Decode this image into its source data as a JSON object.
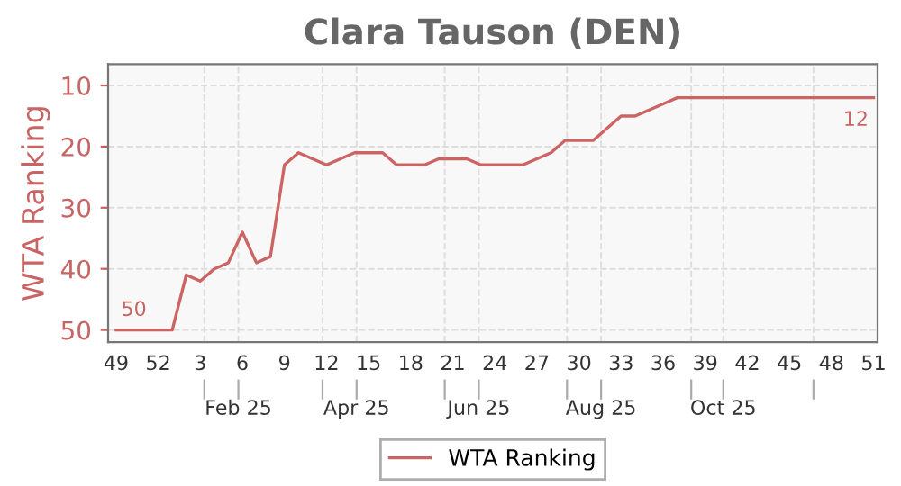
{
  "chart_data": {
    "type": "line",
    "title": "Clara Tauson (DEN)",
    "ylabel": "WTA Ranking",
    "x": [
      "2024-12-02",
      "2024-12-09",
      "2024-12-16",
      "2024-12-23",
      "2024-12-30",
      "2025-01-06",
      "2025-01-13",
      "2025-01-20",
      "2025-01-27",
      "2025-02-03",
      "2025-02-10",
      "2025-02-17",
      "2025-02-24",
      "2025-03-03",
      "2025-03-10",
      "2025-03-17",
      "2025-03-24",
      "2025-03-31",
      "2025-04-07",
      "2025-04-14",
      "2025-04-21",
      "2025-04-28",
      "2025-05-05",
      "2025-05-12",
      "2025-05-19",
      "2025-05-26",
      "2025-06-02",
      "2025-06-09",
      "2025-06-16",
      "2025-06-23",
      "2025-06-30",
      "2025-07-07",
      "2025-07-14",
      "2025-07-21",
      "2025-07-28",
      "2025-08-04",
      "2025-08-11",
      "2025-08-18",
      "2025-08-25",
      "2025-09-01",
      "2025-09-08",
      "2025-09-15",
      "2025-09-22",
      "2025-09-29",
      "2025-10-06",
      "2025-10-13",
      "2025-10-20",
      "2025-10-27",
      "2025-11-03",
      "2025-11-10",
      "2025-11-17",
      "2025-11-24",
      "2025-12-01",
      "2025-12-08",
      "2025-12-15"
    ],
    "series": [
      {
        "name": "WTA Ranking",
        "color": "#cd6464",
        "values": [
          50,
          50,
          50,
          50,
          50,
          41,
          42,
          40,
          39,
          34,
          39,
          38,
          23,
          21,
          22,
          23,
          22,
          21,
          21,
          21,
          23,
          23,
          23,
          22,
          22,
          22,
          23,
          23,
          23,
          23,
          22,
          21,
          19,
          19,
          19,
          17,
          15,
          15,
          14,
          13,
          12,
          12,
          12,
          12,
          12,
          12,
          12,
          12,
          12,
          12,
          12,
          12,
          12,
          12,
          12
        ]
      }
    ],
    "annotations": [
      {
        "text": "50",
        "x": "2024-12-02",
        "y": 50
      },
      {
        "text": "12",
        "x": "2025-12-15",
        "y": 12
      }
    ],
    "xlim": [
      "2024-11-28",
      "2025-12-17"
    ],
    "xticks": [
      {
        "value": "2024-12-02",
        "label": "49"
      },
      {
        "value": "2024-12-23",
        "label": "52"
      },
      {
        "value": "2025-01-13",
        "label": "3"
      },
      {
        "value": "2025-02-03",
        "label": "6"
      },
      {
        "value": "2025-02-24",
        "label": "9"
      },
      {
        "value": "2025-03-17",
        "label": "12"
      },
      {
        "value": "2025-04-07",
        "label": "15"
      },
      {
        "value": "2025-04-28",
        "label": "18"
      },
      {
        "value": "2025-05-19",
        "label": "21"
      },
      {
        "value": "2025-06-09",
        "label": "24"
      },
      {
        "value": "2025-06-30",
        "label": "27"
      },
      {
        "value": "2025-07-21",
        "label": "30"
      },
      {
        "value": "2025-08-11",
        "label": "33"
      },
      {
        "value": "2025-09-01",
        "label": "36"
      },
      {
        "value": "2025-09-22",
        "label": "39"
      },
      {
        "value": "2025-10-13",
        "label": "42"
      },
      {
        "value": "2025-11-03",
        "label": "45"
      },
      {
        "value": "2025-11-24",
        "label": "48"
      },
      {
        "value": "2025-12-15",
        "label": "51"
      }
    ],
    "x2lim": [
      "2024-11-28",
      "2025-12-17"
    ],
    "x2ticks": [
      {
        "value": "2025-01-15",
        "label": null
      },
      {
        "value": "2025-02-01",
        "label": "Feb 25"
      },
      {
        "value": "2025-03-15",
        "label": null
      },
      {
        "value": "2025-04-01",
        "label": "Apr 25"
      },
      {
        "value": "2025-05-15",
        "label": null
      },
      {
        "value": "2025-06-01",
        "label": "Jun 25"
      },
      {
        "value": "2025-07-15",
        "label": null
      },
      {
        "value": "2025-08-01",
        "label": "Aug 25"
      },
      {
        "value": "2025-09-15",
        "label": null
      },
      {
        "value": "2025-10-01",
        "label": "Oct 25"
      },
      {
        "value": "2025-11-15",
        "label": null
      }
    ],
    "ylim": [
      52,
      6.5
    ],
    "yticks": [
      10,
      20,
      30,
      40,
      50
    ],
    "grid": true,
    "legend": "bottom",
    "marker": "none",
    "line_style": "solid"
  }
}
